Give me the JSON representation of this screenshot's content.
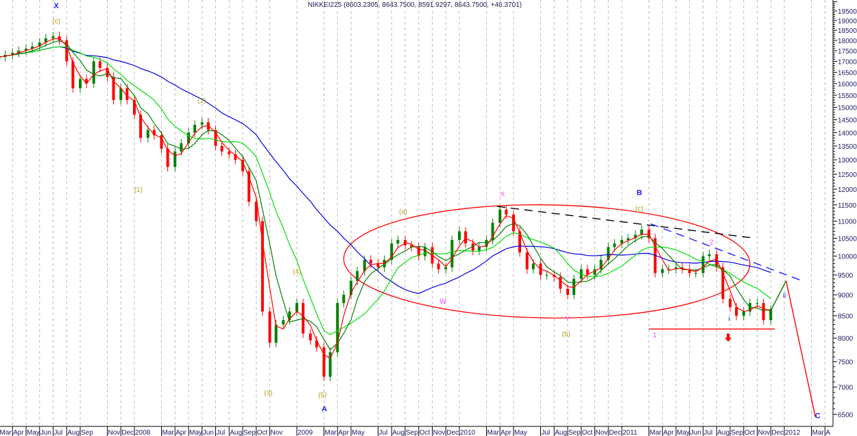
{
  "chart_data": {
    "type": "candlestick",
    "title": "NIKKEI225 (8603.2305, 8643.7500, 8591.9297, 8643.7500, +46.3701)",
    "y_scale": "log",
    "ylim": [
      6400,
      20100
    ],
    "y_ticks": [
      6500,
      7000,
      7500,
      8000,
      8500,
      9000,
      9500,
      10000,
      10500,
      11000,
      11500,
      12000,
      12500,
      13000,
      13500,
      14000,
      14500,
      15000,
      15500,
      16000,
      16500,
      17000,
      17500,
      18000,
      18500,
      19000,
      19500
    ],
    "y_axis_position": "right",
    "grid": "vertical dashed",
    "x_ticks": [
      {
        "label": "Mar",
        "date": "2007-03-01"
      },
      {
        "label": "Apr",
        "date": "2007-04-01"
      },
      {
        "label": "May",
        "date": "2007-05-01"
      },
      {
        "label": "Jun",
        "date": "2007-06-01"
      },
      {
        "label": "Jul",
        "date": "2007-07-01"
      },
      {
        "label": "Aug",
        "date": "2007-08-01"
      },
      {
        "label": "Sep",
        "date": "2007-09-01"
      },
      {
        "label": "Nov",
        "date": "2007-11-01"
      },
      {
        "label": "Dec",
        "date": "2007-12-01"
      },
      {
        "label": "2008",
        "date": "2008-01-01"
      },
      {
        "label": "Mar",
        "date": "2008-03-01"
      },
      {
        "label": "Apr",
        "date": "2008-04-01"
      },
      {
        "label": "May",
        "date": "2008-05-01"
      },
      {
        "label": "Jun",
        "date": "2008-06-01"
      },
      {
        "label": "Jul",
        "date": "2008-07-01"
      },
      {
        "label": "Aug",
        "date": "2008-08-01"
      },
      {
        "label": "Sep",
        "date": "2008-09-01"
      },
      {
        "label": "Oct",
        "date": "2008-10-01"
      },
      {
        "label": "Nov",
        "date": "2008-11-01"
      },
      {
        "label": "2009",
        "date": "2009-01-01"
      },
      {
        "label": "Mar",
        "date": "2009-03-01"
      },
      {
        "label": "Apr",
        "date": "2009-04-01"
      },
      {
        "label": "May",
        "date": "2009-05-01"
      },
      {
        "label": "Jul",
        "date": "2009-07-01"
      },
      {
        "label": "Aug",
        "date": "2009-08-01"
      },
      {
        "label": "Sep",
        "date": "2009-09-01"
      },
      {
        "label": "Oct",
        "date": "2009-10-01"
      },
      {
        "label": "Nov",
        "date": "2009-11-01"
      },
      {
        "label": "Dec",
        "date": "2009-12-01"
      },
      {
        "label": "2010",
        "date": "2010-01-01"
      },
      {
        "label": "Mar",
        "date": "2010-03-01"
      },
      {
        "label": "Apr",
        "date": "2010-04-01"
      },
      {
        "label": "May",
        "date": "2010-05-01"
      },
      {
        "label": "Jul",
        "date": "2010-07-01"
      },
      {
        "label": "Aug",
        "date": "2010-08-01"
      },
      {
        "label": "Sep",
        "date": "2010-09-01"
      },
      {
        "label": "Oct",
        "date": "2010-10-01"
      },
      {
        "label": "Nov",
        "date": "2010-11-01"
      },
      {
        "label": "Dec",
        "date": "2010-12-01"
      },
      {
        "label": "2011",
        "date": "2011-01-01"
      },
      {
        "label": "Mar",
        "date": "2011-03-01"
      },
      {
        "label": "Apr",
        "date": "2011-04-01"
      },
      {
        "label": "May",
        "date": "2011-05-01"
      },
      {
        "label": "Jun",
        "date": "2011-06-01"
      },
      {
        "label": "Jul",
        "date": "2011-07-01"
      },
      {
        "label": "Aug",
        "date": "2011-08-01"
      },
      {
        "label": "Sep",
        "date": "2011-09-01"
      },
      {
        "label": "Oct",
        "date": "2011-10-01"
      },
      {
        "label": "Nov",
        "date": "2011-11-01"
      },
      {
        "label": "Dec",
        "date": "2011-12-01"
      },
      {
        "label": "2012",
        "date": "2012-01-01"
      },
      {
        "label": "Mar",
        "date": "2012-03-01"
      },
      {
        "label": "A",
        "date": "2012-04-01"
      }
    ],
    "dates": [
      "2007-03-01",
      "2007-03-15",
      "2007-04-01",
      "2007-04-15",
      "2007-05-01",
      "2007-05-15",
      "2007-06-01",
      "2007-06-15",
      "2007-07-01",
      "2007-07-15",
      "2007-08-01",
      "2007-08-15",
      "2007-09-01",
      "2007-09-15",
      "2007-10-01",
      "2007-10-15",
      "2007-11-01",
      "2007-11-15",
      "2007-12-01",
      "2007-12-15",
      "2008-01-01",
      "2008-01-15",
      "2008-02-01",
      "2008-02-15",
      "2008-03-01",
      "2008-03-15",
      "2008-04-01",
      "2008-04-15",
      "2008-05-01",
      "2008-05-15",
      "2008-06-01",
      "2008-06-15",
      "2008-07-01",
      "2008-07-15",
      "2008-08-01",
      "2008-08-15",
      "2008-09-01",
      "2008-09-15",
      "2008-10-01",
      "2008-10-15",
      "2008-11-01",
      "2008-11-15",
      "2008-12-01",
      "2008-12-15",
      "2009-01-01",
      "2009-01-15",
      "2009-02-01",
      "2009-02-15",
      "2009-03-01",
      "2009-03-15",
      "2009-04-01",
      "2009-04-15",
      "2009-05-01",
      "2009-05-15",
      "2009-06-01",
      "2009-06-15",
      "2009-07-01",
      "2009-07-15",
      "2009-08-01",
      "2009-08-15",
      "2009-09-01",
      "2009-09-15",
      "2009-10-01",
      "2009-10-15",
      "2009-11-01",
      "2009-11-15",
      "2009-12-01",
      "2009-12-15",
      "2010-01-01",
      "2010-01-15",
      "2010-02-01",
      "2010-02-15",
      "2010-03-01",
      "2010-03-15",
      "2010-04-01",
      "2010-04-15",
      "2010-05-01",
      "2010-05-15",
      "2010-06-01",
      "2010-06-15",
      "2010-07-01",
      "2010-07-15",
      "2010-08-01",
      "2010-08-15",
      "2010-09-01",
      "2010-09-15",
      "2010-10-01",
      "2010-10-15",
      "2010-11-01",
      "2010-11-15",
      "2010-12-01",
      "2010-12-15",
      "2011-01-01",
      "2011-01-15",
      "2011-02-01",
      "2011-02-15",
      "2011-03-01",
      "2011-03-15",
      "2011-04-01",
      "2011-04-15",
      "2011-05-01",
      "2011-05-15",
      "2011-06-01",
      "2011-06-15",
      "2011-07-01",
      "2011-07-15",
      "2011-08-01",
      "2011-08-15",
      "2011-09-01",
      "2011-09-15",
      "2011-10-01",
      "2011-10-15",
      "2011-11-01",
      "2011-11-15",
      "2011-12-01"
    ],
    "close": [
      17200,
      17300,
      17400,
      17500,
      17600,
      17700,
      17900,
      18100,
      18200,
      18000,
      17000,
      15800,
      16200,
      16000,
      17000,
      16700,
      16300,
      15300,
      15800,
      15300,
      14700,
      13800,
      14100,
      13900,
      13400,
      12750,
      13300,
      13600,
      14000,
      14300,
      14400,
      14100,
      13500,
      13300,
      13200,
      13000,
      12600,
      11600,
      11000,
      8600,
      7900,
      8300,
      8400,
      8600,
      8800,
      8100,
      7950,
      7800,
      7200,
      7700,
      8800,
      9000,
      9350,
      9600,
      9900,
      9800,
      9700,
      9900,
      10350,
      10450,
      10300,
      10250,
      10000,
      10250,
      9800,
      9650,
      9700,
      10450,
      10700,
      10350,
      10150,
      10250,
      10450,
      10950,
      11350,
      11200,
      10700,
      10100,
      9650,
      9800,
      9500,
      9500,
      9450,
      9150,
      9000,
      9400,
      9650,
      9500,
      9650,
      9900,
      10250,
      10350,
      10450,
      10500,
      10600,
      10750,
      10500,
      9550,
      9650,
      9650,
      9700,
      9650,
      9550,
      9550,
      10000,
      10050,
      9700,
      8900,
      8700,
      8500,
      8600,
      8800,
      8800,
      8400,
      8643.75
    ],
    "moving_averages": [
      {
        "color": "#ff0000",
        "periods": 3
      },
      {
        "color": "#008000",
        "periods": 5
      },
      {
        "color": "#00e000",
        "periods": 10
      },
      {
        "color": "#0000e0",
        "periods": 24
      }
    ],
    "up_color": "#008000",
    "down_color": "#ff0000",
    "annotations": [
      {
        "text": "X",
        "date": "2007-07-08",
        "price": 19800,
        "color": "#2020ff",
        "size": "big"
      },
      {
        "text": "(c)",
        "date": "2007-07-08",
        "price": 19000,
        "color": "#b0a020",
        "size": "small"
      },
      {
        "text": "(1)",
        "date": "2008-01-10",
        "price": 12000,
        "color": "#b0a020",
        "size": "small"
      },
      {
        "text": "(2)",
        "date": "2008-05-31",
        "price": 15300,
        "color": "#b0a020",
        "size": "small"
      },
      {
        "text": "(3)",
        "date": "2008-10-28",
        "price": 6900,
        "color": "#b0a020",
        "size": "small"
      },
      {
        "text": "(4)",
        "date": "2009-01-01",
        "price": 9600,
        "color": "#b0a020",
        "size": "small"
      },
      {
        "text": "(5)",
        "date": "2009-02-28",
        "price": 6860,
        "color": "#b0a020",
        "size": "small"
      },
      {
        "text": "A",
        "date": "2009-03-02",
        "price": 6600,
        "color": "#2020ff",
        "size": "big"
      },
      {
        "text": "(a)",
        "date": "2009-08-27",
        "price": 11300,
        "color": "#b0a020",
        "size": "small"
      },
      {
        "text": "W",
        "date": "2009-11-25",
        "price": 8850,
        "color": "#ff40ff",
        "size": "small"
      },
      {
        "text": "X",
        "date": "2010-04-07",
        "price": 11850,
        "color": "#ff40ff",
        "size": "small"
      },
      {
        "text": "Y",
        "date": "2010-08-31",
        "price": 8450,
        "color": "#ff40ff",
        "size": "small"
      },
      {
        "text": "(b)",
        "date": "2010-08-28",
        "price": 8100,
        "color": "#b0a020",
        "size": "small"
      },
      {
        "text": "B",
        "date": "2011-02-10",
        "price": 11900,
        "color": "#2020ff",
        "size": "big"
      },
      {
        "text": "(c)",
        "date": "2011-02-10",
        "price": 11400,
        "color": "#b0a020",
        "size": "small"
      },
      {
        "text": "1",
        "date": "2011-03-14",
        "price": 8080,
        "color": "#ff40ff",
        "size": "small"
      },
      {
        "text": "2",
        "date": "2011-07-20",
        "price": 10400,
        "color": "#ff40ff",
        "size": "small"
      },
      {
        "text": "i",
        "date": "2011-08-29",
        "price": 8450,
        "color": "#2020ff",
        "size": "small"
      },
      {
        "text": "ii",
        "date": "2012-01-01",
        "price": 9000,
        "color": "#2020ff",
        "size": "small"
      },
      {
        "text": "C",
        "date": "2012-03-15",
        "price": 6480,
        "color": "#2020ff",
        "size": "big"
      }
    ],
    "arrow": {
      "direction": "down",
      "date": "2011-08-27",
      "price": 7980,
      "color": "#ff0000"
    },
    "trendlines": [
      {
        "from": {
          "date": "2010-03-25",
          "price": 11450
        },
        "to": {
          "date": "2011-10-27",
          "price": 10500
        },
        "color": "#000000",
        "style": "dashed"
      },
      {
        "from": {
          "date": "2011-03-05",
          "price": 10920
        },
        "to": {
          "date": "2012-02-06",
          "price": 9370
        },
        "color": "#2020ff",
        "style": "dashed"
      },
      {
        "from": {
          "date": "2011-03-01",
          "price": 8200
        },
        "to": {
          "date": "2011-12-10",
          "price": 8200
        },
        "color": "#ff0000",
        "style": "solid"
      },
      {
        "from": {
          "date": "2011-11-28",
          "price": 8550
        },
        "to": {
          "date": "2012-01-05",
          "price": 9350
        },
        "color": "#008000",
        "style": "solid"
      },
      {
        "from": {
          "date": "2012-01-05",
          "price": 9350
        },
        "to": {
          "date": "2012-03-10",
          "price": 6450
        },
        "color": "#ff0000",
        "style": "solid"
      }
    ],
    "ellipse": {
      "left_date": "2009-04-15",
      "right_date": "2011-10-15",
      "top_price": 11500,
      "bottom_price": 8450,
      "color": "#ff0000"
    }
  }
}
